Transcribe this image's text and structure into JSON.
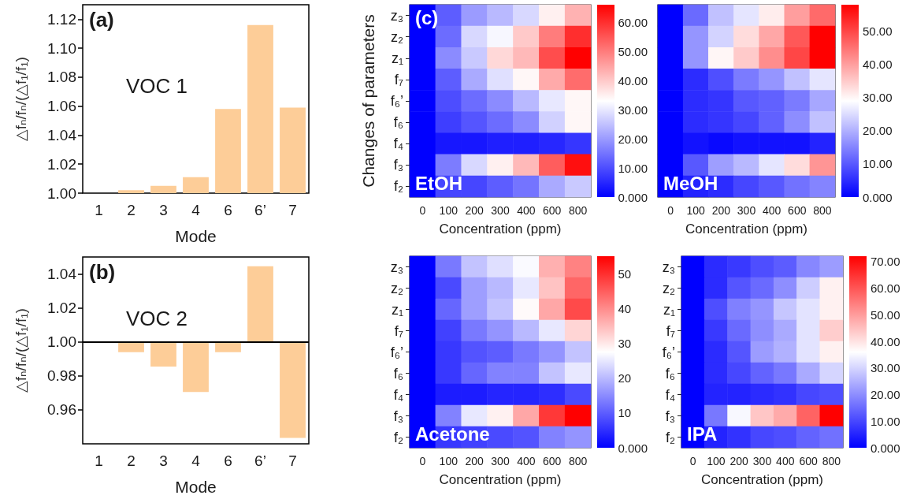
{
  "chart_data": [
    {
      "type": "bar",
      "xlabel": "Mode",
      "ylabel": "△fₙ/fₙ/(△f₁/f₁)",
      "categories": [
        "1",
        "2",
        "3",
        "4",
        "6",
        "6’",
        "7"
      ],
      "values": [
        1.0,
        1.002,
        1.005,
        1.011,
        1.058,
        1.116,
        1.059
      ],
      "color": "#fdcd98",
      "ylim": [
        1.0,
        1.13
      ],
      "yticks": [
        {
          "value": 1.0,
          "label": "1.00"
        },
        {
          "value": 1.02,
          "label": "1.02"
        },
        {
          "value": 1.04,
          "label": "1.04"
        },
        {
          "value": 1.06,
          "label": "1.06"
        },
        {
          "value": 1.08,
          "label": "1.08"
        },
        {
          "value": 1.1,
          "label": "1.10"
        },
        {
          "value": 1.12,
          "label": "1.12"
        }
      ],
      "annotations": [
        "(a)",
        "VOC 1"
      ]
    },
    {
      "type": "bar",
      "xlabel": "Mode",
      "ylabel": "△fₙ/fₙ/(△f₁/f₁)",
      "categories": [
        "1",
        "2",
        "3",
        "4",
        "6",
        "6’",
        "7"
      ],
      "values": [
        null,
        -0.006,
        -0.0145,
        -0.0295,
        -0.006,
        0.0445,
        -0.0565
      ],
      "base": [
        null,
        1.0,
        1.0,
        1.0,
        1.0,
        1.0,
        1.0
      ],
      "color": "#fdcd98",
      "ylim": [
        0.94,
        1.05
      ],
      "yticks": [
        {
          "value": 0.96,
          "label": "0.96"
        },
        {
          "value": 0.98,
          "label": "0.98"
        },
        {
          "value": 1.0,
          "label": "1.00"
        },
        {
          "value": 1.02,
          "label": "1.02"
        },
        {
          "value": 1.04,
          "label": "1.04"
        }
      ],
      "ref_lines": [
        {
          "axis": "y",
          "value": 1.0,
          "label": null,
          "color": "#000000"
        }
      ],
      "annotations": [
        "(b)",
        "VOC 2"
      ]
    },
    {
      "type": "heatmap",
      "xlabel": "Concentration (ppm)",
      "ylabel": "Changes of parameters",
      "categories": [
        "0",
        "100",
        "200",
        "300",
        "400",
        "600",
        "800"
      ],
      "y_categories": [
        "z₃",
        "z₂",
        "z₁",
        "f₇",
        "f₆’",
        "f₆",
        "f₄",
        "f₃",
        "f₂"
      ],
      "cells": [
        [
          0,
          12,
          20,
          24,
          28,
          35,
          43
        ],
        [
          0,
          14,
          28,
          32,
          40,
          50,
          60
        ],
        [
          0,
          18,
          26,
          38,
          42,
          56,
          66
        ],
        [
          0,
          12,
          22,
          29,
          34,
          44,
          52
        ],
        [
          0,
          10,
          14,
          18,
          24,
          30,
          34
        ],
        [
          0,
          8,
          11,
          14,
          18,
          27,
          34
        ],
        [
          0,
          3,
          3,
          4,
          4,
          5,
          7
        ],
        [
          0,
          16,
          28,
          35,
          42,
          54,
          64
        ],
        [
          0,
          9,
          9,
          12,
          15,
          22,
          26
        ]
      ],
      "clim": [
        0,
        66
      ],
      "cticks": [
        {
          "value": 0,
          "label": "0.000"
        },
        {
          "value": 10,
          "label": "10.00"
        },
        {
          "value": 20,
          "label": "20.00"
        },
        {
          "value": 30,
          "label": "30.00"
        },
        {
          "value": 40,
          "label": "40.00"
        },
        {
          "value": 50,
          "label": "50.00"
        },
        {
          "value": 60,
          "label": "60.00"
        }
      ],
      "annotations": [
        "(c)",
        "EtOH"
      ]
    },
    {
      "type": "heatmap",
      "xlabel": "Concentration (ppm)",
      "categories": [
        "0",
        "100",
        "200",
        "300",
        "400",
        "600",
        "800"
      ],
      "y_categories": [
        null,
        null,
        null,
        null,
        null,
        null,
        null,
        null,
        null
      ],
      "tick_labels": "x",
      "cells": [
        [
          0,
          12,
          22,
          26,
          31,
          40,
          46
        ],
        [
          0,
          17,
          24,
          33,
          39,
          48,
          58
        ],
        [
          0,
          17,
          30,
          35,
          42,
          50,
          58
        ],
        [
          0,
          5,
          9,
          14,
          17,
          22,
          26
        ],
        [
          0,
          5,
          6,
          10,
          11,
          14,
          19
        ],
        [
          0,
          5,
          6,
          8,
          11,
          16,
          22
        ],
        [
          0,
          2,
          1,
          2,
          2,
          2,
          4
        ],
        [
          0,
          10,
          18,
          21,
          26,
          33,
          41
        ],
        [
          0,
          4,
          5,
          8,
          10,
          13,
          15
        ]
      ],
      "clim": [
        0,
        58
      ],
      "cticks": [
        {
          "value": 0,
          "label": "0.000"
        },
        {
          "value": 10,
          "label": "10.00"
        },
        {
          "value": 20,
          "label": "20.00"
        },
        {
          "value": 30,
          "label": "30.00"
        },
        {
          "value": 40,
          "label": "40.00"
        },
        {
          "value": 50,
          "label": "50.00"
        }
      ],
      "annotations": [
        "MeOH"
      ]
    },
    {
      "type": "heatmap",
      "xlabel": "Concentration (ppm)",
      "categories": [
        "0",
        "100",
        "200",
        "300",
        "400",
        "600",
        "800"
      ],
      "y_categories": [
        "z₃",
        "z₂",
        "z₁",
        "f₇",
        "f₆’",
        "f₆",
        "f₄",
        "f₃",
        "f₂"
      ],
      "cells": [
        [
          0,
          13,
          21,
          24,
          27,
          36,
          41
        ],
        [
          0,
          8,
          17,
          20,
          25,
          34,
          44
        ],
        [
          0,
          11,
          17,
          21,
          28,
          37,
          47
        ],
        [
          0,
          7,
          13,
          16,
          20,
          25,
          32
        ],
        [
          0,
          6,
          9,
          10,
          13,
          16,
          21
        ],
        [
          0,
          6,
          11,
          14,
          14,
          21,
          25
        ],
        [
          0,
          3,
          3,
          4,
          4,
          5,
          8
        ],
        [
          0,
          14,
          25,
          29,
          37,
          49,
          55
        ],
        [
          0,
          6,
          7,
          8,
          9,
          14,
          16
        ]
      ],
      "clim": [
        0,
        55
      ],
      "cticks": [
        {
          "value": 0,
          "label": "0.000"
        },
        10,
        20,
        30,
        40,
        50
      ],
      "annotations": [
        "Acetone"
      ]
    },
    {
      "type": "heatmap",
      "xlabel": "Concentration (ppm)",
      "categories": [
        "0",
        "100",
        "200",
        "300",
        "400",
        "600",
        "800"
      ],
      "y_categories": [
        "z₃",
        "z₂",
        "z₁",
        "f₇",
        "f₆’",
        "f₆",
        "f₄",
        "f₃",
        "f₂"
      ],
      "cells": [
        [
          0,
          6,
          8,
          11,
          13,
          19,
          22
        ],
        [
          0,
          6,
          12,
          15,
          20,
          29,
          38
        ],
        [
          0,
          11,
          18,
          21,
          28,
          32,
          38
        ],
        [
          0,
          8,
          15,
          20,
          24,
          32,
          43
        ],
        [
          0,
          6,
          12,
          22,
          25,
          32,
          38
        ],
        [
          0,
          6,
          10,
          14,
          17,
          24,
          30
        ],
        [
          0,
          5,
          5,
          6,
          7,
          10,
          11
        ],
        [
          0,
          17,
          35,
          44,
          48,
          58,
          72
        ],
        [
          0,
          5,
          7,
          10,
          11,
          14,
          16
        ]
      ],
      "clim": [
        0,
        72
      ],
      "cticks": [
        {
          "value": 0,
          "label": "0.000"
        },
        {
          "value": 10,
          "label": "10.00"
        },
        {
          "value": 20,
          "label": "20.00"
        },
        {
          "value": 30,
          "label": "30.00"
        },
        {
          "value": 40,
          "label": "40.00"
        },
        {
          "value": 50,
          "label": "50.00"
        },
        {
          "value": 60,
          "label": "60.00"
        },
        {
          "value": 70,
          "label": "70.00"
        }
      ],
      "annotations": [
        "IPA"
      ]
    }
  ]
}
